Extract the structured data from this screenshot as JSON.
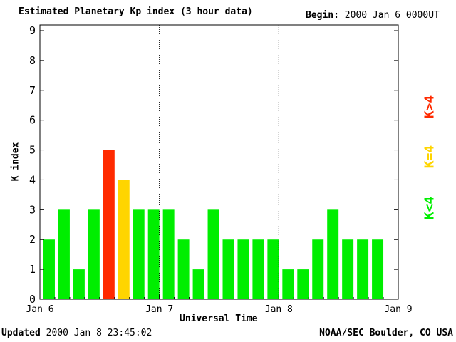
{
  "title": "Estimated Planetary Kp index (3 hour data)",
  "begin": {
    "label": "Begin:",
    "value": "2000 Jan 6 0000UT"
  },
  "updated": {
    "label": "Updated",
    "value": "2000 Jan  8 23:45:02"
  },
  "credit": "NOAA/SEC Boulder, CO USA",
  "legend": [
    {
      "label": "K>4",
      "color": "#ff2a00"
    },
    {
      "label": "K=4",
      "color": "#ffd500"
    },
    {
      "label": "K<4",
      "color": "#00ee00"
    }
  ],
  "chart_data": {
    "type": "bar",
    "xlabel": "Universal Time",
    "ylabel": "K index",
    "ylim": [
      0,
      9
    ],
    "yticks": [
      "0",
      "1",
      "2",
      "3",
      "4",
      "5",
      "6",
      "7",
      "8",
      "9"
    ],
    "xticks": [
      "Jan 6",
      "Jan 7",
      "Jan 8",
      "Jan 9"
    ],
    "grid": "dotted vertical lines at day boundaries",
    "interval_hours": 3,
    "values": [
      2,
      3,
      1,
      3,
      5,
      4,
      3,
      3,
      3,
      2,
      1,
      3,
      2,
      2,
      2,
      2,
      1,
      1,
      2,
      3,
      2,
      2,
      2
    ],
    "colors": {
      "below": "#00ee00",
      "equal": "#ffd500",
      "above": "#ff2a00"
    }
  }
}
